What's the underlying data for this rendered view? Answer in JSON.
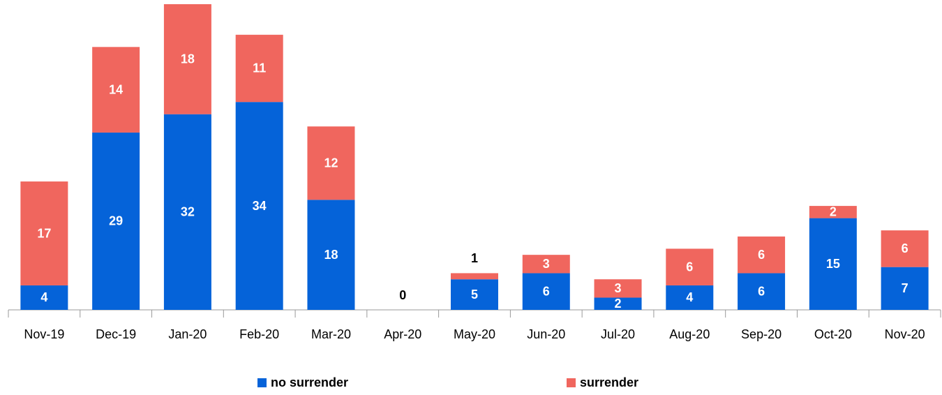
{
  "chart_data": {
    "type": "stacked_bar",
    "categories": [
      "Nov-19",
      "Dec-19",
      "Jan-20",
      "Feb-20",
      "Mar-20",
      "Apr-20",
      "May-20",
      "Jun-20",
      "Jul-20",
      "Aug-20",
      "Sep-20",
      "Oct-20",
      "Nov-20"
    ],
    "series": [
      {
        "name": "no surrender",
        "color": "#0563d9",
        "values": [
          4,
          29,
          32,
          34,
          18,
          0,
          5,
          6,
          2,
          4,
          6,
          15,
          7
        ]
      },
      {
        "name": "surrender",
        "color": "#f0665e",
        "values": [
          17,
          14,
          18,
          11,
          12,
          0,
          1,
          3,
          3,
          6,
          6,
          2,
          6
        ]
      }
    ],
    "grid": false
  }
}
